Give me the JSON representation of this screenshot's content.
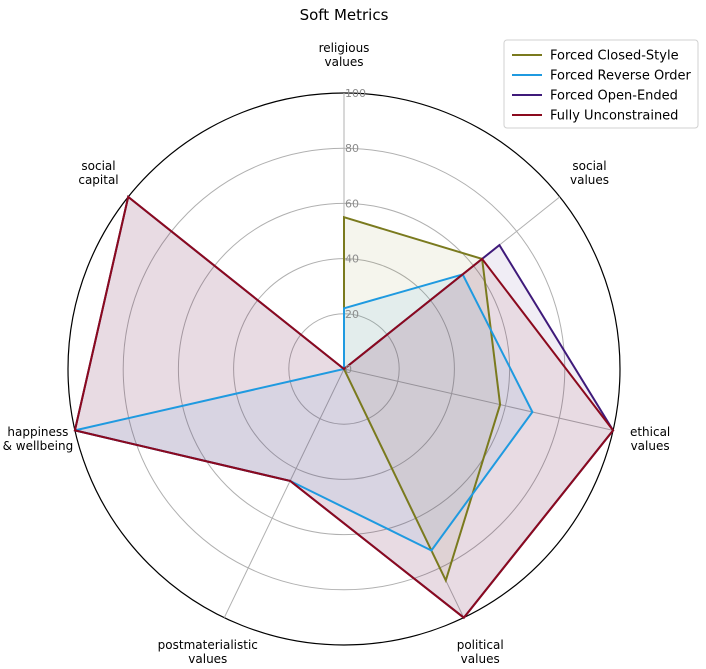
{
  "chart_data": {
    "type": "radar",
    "title": "Soft Metrics",
    "categories": [
      [
        "religious",
        "values"
      ],
      [
        "social",
        "values"
      ],
      [
        "ethical",
        "values"
      ],
      [
        "political",
        "values"
      ],
      [
        "postmaterialistic",
        "values"
      ],
      [
        "happiness",
        "& wellbeing"
      ],
      [
        "social",
        "capital"
      ]
    ],
    "rlim": [
      0,
      100
    ],
    "rticks": [
      "0",
      "20",
      "40",
      "60",
      "80",
      "100"
    ],
    "grid": true,
    "legend_position": "top-right",
    "series": [
      {
        "name": "Forced Closed-Style",
        "color": "#7a7a1e",
        "values": [
          55,
          64,
          58,
          85,
          0,
          0,
          0
        ]
      },
      {
        "name": "Forced Reverse Order",
        "color": "#1f9ae0",
        "values": [
          22,
          55,
          70,
          73,
          45,
          100,
          0
        ]
      },
      {
        "name": "Forced Open-Ended",
        "color": "#3f1a7a",
        "values": [
          0,
          72,
          100,
          100,
          45,
          100,
          100
        ]
      },
      {
        "name": "Fully Unconstrained",
        "color": "#8b0a1e",
        "values": [
          0,
          64,
          100,
          100,
          45,
          100,
          100
        ]
      }
    ]
  }
}
